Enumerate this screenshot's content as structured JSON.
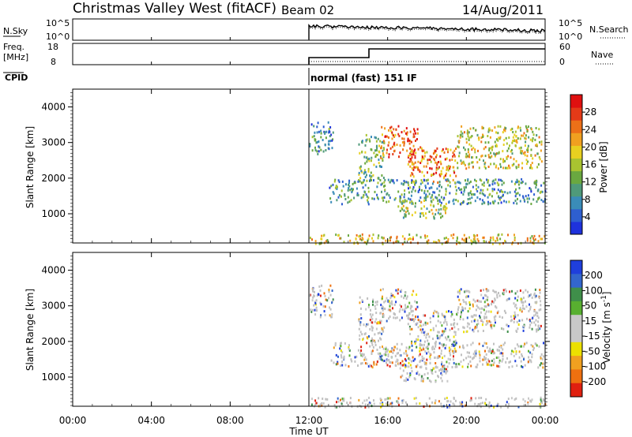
{
  "header": {
    "station": "Christmas Valley West (fitACF)",
    "beam": "Beam 02",
    "date": "14/Aug/2011"
  },
  "panels": {
    "nsky": {
      "label": "N.Sky",
      "ticks": [
        "10^5",
        "10^0"
      ]
    },
    "nsearch": {
      "label": "N.Search",
      "ticks": [
        "10^5",
        "10^0"
      ]
    },
    "freq": {
      "label": "Freq.",
      "unit": "[MHz]",
      "ticks": [
        "18",
        "8"
      ]
    },
    "nave": {
      "label": "Nave",
      "ticks": [
        "60",
        "0"
      ]
    },
    "cpid": {
      "label": "CPID",
      "text": "normal (fast) 151 IF"
    }
  },
  "colors": {
    "power_scale": [
      "#1e32dc",
      "#2e5fd0",
      "#3a8cb8",
      "#4f9a7a",
      "#6aa840",
      "#a9c330",
      "#e8d020",
      "#f0a020",
      "#ec7018",
      "#e43a18",
      "#e01010"
    ],
    "velocity_scale": [
      "#1f3fdc",
      "#3366cc",
      "#3f8f4a",
      "#58b030",
      "#c8c8c8",
      "#c8c8c8",
      "#ece000",
      "#f0a020",
      "#ee7010",
      "#e02010"
    ],
    "ground_scatter": "#c0c0c0"
  },
  "chart_data": [
    {
      "type": "heatmap",
      "name": "power",
      "ylabel": "Slant Range [km]",
      "ylim": [
        180,
        4500
      ],
      "yticks": [
        "1000",
        "2000",
        "3000",
        "4000"
      ],
      "xticks": [
        "00:00",
        "04:00",
        "08:00",
        "12:00",
        "16:00",
        "20:00",
        "00:00"
      ],
      "xlim_hours": [
        0,
        24
      ],
      "data_start_hour": 12,
      "colorbar": {
        "label": "Power [dB]",
        "ticks": [
          "4",
          "8",
          "12",
          "16",
          "20",
          "24",
          "28"
        ],
        "range": [
          0,
          32
        ]
      }
    },
    {
      "type": "heatmap",
      "name": "velocity",
      "ylabel": "Slant Range [km]",
      "ylim": [
        180,
        4500
      ],
      "yticks": [
        "1000",
        "2000",
        "3000",
        "4000"
      ],
      "xticks": [
        "00:00",
        "04:00",
        "08:00",
        "12:00",
        "16:00",
        "20:00",
        "00:00"
      ],
      "xlabel": "Time UT",
      "xlim_hours": [
        0,
        24
      ],
      "data_start_hour": 12,
      "colorbar": {
        "label": "Velocity [m s-1]",
        "ticks": [
          "200",
          "100",
          "50",
          "15",
          "-15",
          "-50",
          "-100",
          "-200"
        ]
      }
    }
  ],
  "echo_bands": [
    {
      "hours": [
        12.0,
        13.2
      ],
      "range_km": [
        2700,
        3600
      ],
      "level": 0.25
    },
    {
      "hours": [
        14.5,
        15.8
      ],
      "range_km": [
        2000,
        3300
      ],
      "level": 0.4
    },
    {
      "hours": [
        15.6,
        17.5
      ],
      "range_km": [
        2600,
        3500
      ],
      "level": 0.8
    },
    {
      "hours": [
        17.0,
        19.5
      ],
      "range_km": [
        1900,
        2900
      ],
      "level": 0.75
    },
    {
      "hours": [
        19.5,
        23.8
      ],
      "range_km": [
        2300,
        3500
      ],
      "level": 0.55
    },
    {
      "hours": [
        13.0,
        24.0
      ],
      "range_km": [
        1300,
        2000
      ],
      "level": 0.3
    },
    {
      "hours": [
        16.5,
        19.0
      ],
      "range_km": [
        900,
        1400
      ],
      "level": 0.45
    },
    {
      "hours": [
        12.0,
        24.0
      ],
      "range_km": [
        180,
        450
      ],
      "level": 0.6
    }
  ]
}
